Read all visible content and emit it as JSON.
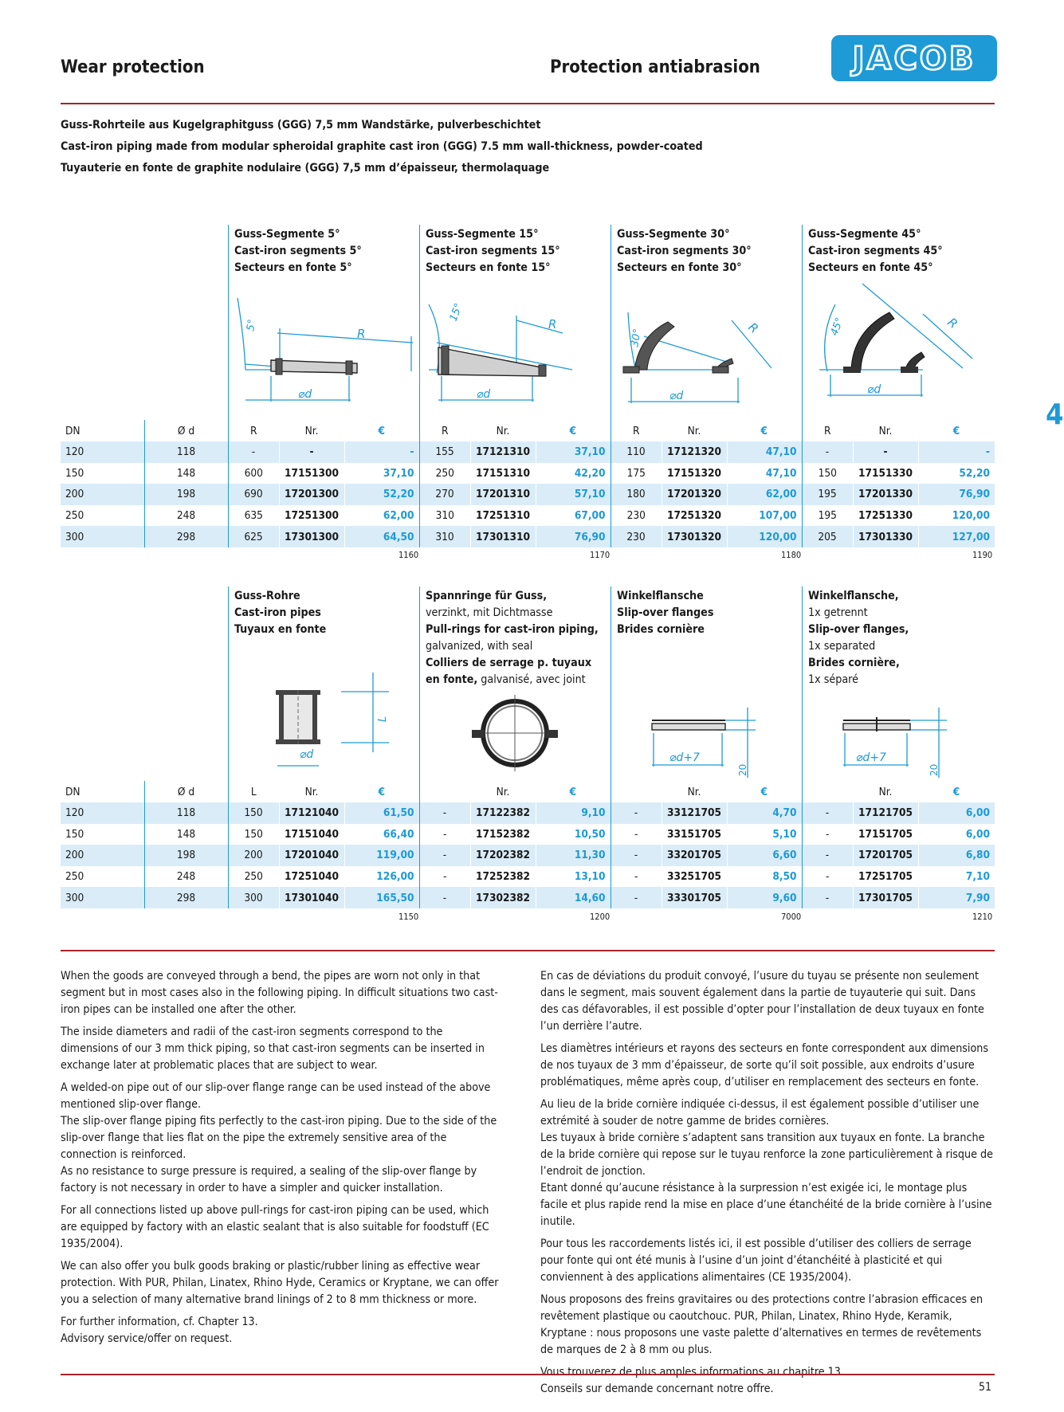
{
  "header": {
    "title_en": "Wear protection",
    "title_fr": "Protection antiabrasion",
    "logo_text": "JACOB"
  },
  "chapter_number": "4",
  "intro": [
    "Guss-Rohrteile aus Kugelgraphitguss (GGG) 7,5 mm Wandstärke, pulverbeschichtet",
    "Cast-iron piping made from modular spheroidal graphite cast iron (GGG) 7.5 mm wall-thickness, powder-coated",
    "Tuyauterie en fonte de graphite nodulaire (GGG) 7,5 mm d’épaisseur, thermolaquage"
  ],
  "table1": {
    "products": [
      {
        "de": "Guss-Segmente 5°",
        "en": "Cast-iron segments 5°",
        "fr": "Secteurs en fonte 5°",
        "angle": "5°",
        "code": "1160"
      },
      {
        "de": "Guss-Segmente 15°",
        "en": "Cast-iron segments 15°",
        "fr": "Secteurs en fonte 15°",
        "angle": "15°",
        "code": "1170"
      },
      {
        "de": "Guss-Segmente 30°",
        "en": "Cast-iron segments 30°",
        "fr": "Secteurs en fonte 30°",
        "angle": "30°",
        "code": "1180"
      },
      {
        "de": "Guss-Segmente 45°",
        "en": "Cast-iron segments 45°",
        "fr": "Secteurs en fonte 45°",
        "angle": "45°",
        "code": "1190"
      }
    ],
    "diagram_labels": {
      "radius": "R",
      "diameter": "⌀d"
    },
    "headers": {
      "dn": "DN",
      "od": "Ø d",
      "r": "R",
      "nr": "Nr.",
      "eur": "€"
    },
    "rows": [
      {
        "dn": "120",
        "od": "118",
        "c": [
          [
            "-",
            "-",
            "-"
          ],
          [
            "155",
            "17121310",
            "37,10"
          ],
          [
            "110",
            "17121320",
            "47,10"
          ],
          [
            "-",
            "-",
            "-"
          ]
        ]
      },
      {
        "dn": "150",
        "od": "148",
        "c": [
          [
            "600",
            "17151300",
            "37,10"
          ],
          [
            "250",
            "17151310",
            "42,20"
          ],
          [
            "175",
            "17151320",
            "47,10"
          ],
          [
            "150",
            "17151330",
            "52,20"
          ]
        ]
      },
      {
        "dn": "200",
        "od": "198",
        "c": [
          [
            "690",
            "17201300",
            "52,20"
          ],
          [
            "270",
            "17201310",
            "57,10"
          ],
          [
            "180",
            "17201320",
            "62,00"
          ],
          [
            "195",
            "17201330",
            "76,90"
          ]
        ]
      },
      {
        "dn": "250",
        "od": "248",
        "c": [
          [
            "635",
            "17251300",
            "62,00"
          ],
          [
            "310",
            "17251310",
            "67,00"
          ],
          [
            "230",
            "17251320",
            "107,00"
          ],
          [
            "195",
            "17251330",
            "120,00"
          ]
        ]
      },
      {
        "dn": "300",
        "od": "298",
        "c": [
          [
            "625",
            "17301300",
            "64,50"
          ],
          [
            "310",
            "17301310",
            "76,90"
          ],
          [
            "230",
            "17301320",
            "120,00"
          ],
          [
            "205",
            "17301330",
            "127,00"
          ]
        ]
      }
    ]
  },
  "table2": {
    "products": [
      {
        "lines": [
          {
            "t": "Guss-Rohre",
            "b": true
          },
          {
            "t": "Cast-iron pipes",
            "b": true
          },
          {
            "t": "Tuyaux en fonte",
            "b": true
          }
        ],
        "code": "1150"
      },
      {
        "lines": [
          {
            "t": "Spannringe für Guss,",
            "b": true
          },
          {
            "t": "verzinkt, mit Dichtmasse",
            "b": false
          },
          {
            "t": "Pull-rings for cast-iron piping,",
            "b": true
          },
          {
            "t": "galvanized, with seal",
            "b": false
          },
          {
            "t": "Colliers de serrage p. tuyaux",
            "b": true
          },
          {
            "t": "en fonte,",
            "b": true,
            "rest": " galvanisé, avec joint"
          }
        ],
        "code": "1200"
      },
      {
        "lines": [
          {
            "t": "Winkelflansche",
            "b": true
          },
          {
            "t": "Slip-over flanges",
            "b": true
          },
          {
            "t": "Brides cornière",
            "b": true
          }
        ],
        "code": "7000"
      },
      {
        "lines": [
          {
            "t": "Winkelflansche,",
            "b": true
          },
          {
            "t": "1x getrennt",
            "b": false
          },
          {
            "t": "Slip-over flanges,",
            "b": true
          },
          {
            "t": "1x separated",
            "b": false
          },
          {
            "t": "Brides cornière,",
            "b": true
          },
          {
            "t": "1x séparé",
            "b": false
          }
        ],
        "code": "1210"
      }
    ],
    "diagram_labels": {
      "length": "L",
      "diameter": "⌀d",
      "flange_diameter": "⌀d+7",
      "height": "20"
    },
    "headers": {
      "dn": "DN",
      "od": "Ø d",
      "l": "L",
      "nr": "Nr.",
      "eur": "€"
    },
    "rows": [
      {
        "dn": "120",
        "od": "118",
        "c": [
          [
            "150",
            "17121040",
            "61,50"
          ],
          [
            "-",
            "17122382",
            "9,10"
          ],
          [
            "-",
            "33121705",
            "4,70"
          ],
          [
            "-",
            "17121705",
            "6,00"
          ]
        ]
      },
      {
        "dn": "150",
        "od": "148",
        "c": [
          [
            "150",
            "17151040",
            "66,40"
          ],
          [
            "-",
            "17152382",
            "10,50"
          ],
          [
            "-",
            "33151705",
            "5,10"
          ],
          [
            "-",
            "17151705",
            "6,00"
          ]
        ]
      },
      {
        "dn": "200",
        "od": "198",
        "c": [
          [
            "200",
            "17201040",
            "119,00"
          ],
          [
            "-",
            "17202382",
            "11,30"
          ],
          [
            "-",
            "33201705",
            "6,60"
          ],
          [
            "-",
            "17201705",
            "6,80"
          ]
        ]
      },
      {
        "dn": "250",
        "od": "248",
        "c": [
          [
            "250",
            "17251040",
            "126,00"
          ],
          [
            "-",
            "17252382",
            "13,10"
          ],
          [
            "-",
            "33251705",
            "8,50"
          ],
          [
            "-",
            "17251705",
            "7,10"
          ]
        ]
      },
      {
        "dn": "300",
        "od": "298",
        "c": [
          [
            "300",
            "17301040",
            "165,50"
          ],
          [
            "-",
            "17302382",
            "14,60"
          ],
          [
            "-",
            "33301705",
            "9,60"
          ],
          [
            "-",
            "17301705",
            "7,90"
          ]
        ]
      }
    ]
  },
  "text_en": [
    "When the goods are conveyed through a bend, the pipes are worn not only in that segment but in most cases also in the following piping. In difficult situations two cast-iron pipes can be installed one after the other.",
    "The inside diameters and radii of the cast-iron segments correspond to the dimensions of our 3 mm thick piping, so that cast-iron segments can be inserted in exchange later at problematic places that are subject to wear.",
    "A welded-on pipe out of our slip-over flange range can be used instead of the above mentioned slip-over flange.\nThe slip-over flange piping fits perfectly to the cast-iron piping. Due to the side of the slip-over flange that lies flat on the pipe the extremely sensitive area of the connection is reinforced.\nAs no resistance to surge pressure is required, a sealing of the slip-over flange by factory is not necessary in order to have a simpler and quicker installation.",
    "For all connections listed up above pull-rings for cast-iron piping can be used, which are equipped by factory with an elastic sealant that is also suitable for foodstuff (EC 1935/2004).",
    "We can also offer you bulk goods braking or plastic/rubber lining as effective wear protection. With PUR, Philan, Linatex, Rhino Hyde, Ceramics or Kryptane, we can offer you a selection of many alternative brand linings of 2 to 8 mm thickness or more.",
    "For further information, cf. Chapter 13.\nAdvisory service/offer on request."
  ],
  "text_fr": [
    "En cas de déviations du produit convoyé, l’usure du tuyau se présente non seulement dans le segment, mais souvent également dans la partie de tuyauterie qui suit. Dans des cas défavorables, il est possible d’opter pour l’installation de deux tuyaux en fonte l’un derrière l’autre.",
    "Les diamètres intérieurs et rayons des secteurs en fonte correspondent aux dimensions de nos tuyaux de 3 mm d’épaisseur, de sorte qu’il soit possible, aux endroits d’usure problématiques, même après coup, d’utiliser en remplacement des secteurs en fonte.",
    "Au lieu de la bride cornière indiquée ci-dessus, il est également possible d’utiliser une extrémité à souder de notre gamme de brides cornières.\nLes tuyaux à bride cornière s’adaptent sans transition aux tuyaux en fonte. La branche de la bride cornière qui repose sur le tuyau renforce la zone particulièrement à risque de l’endroit de jonction.\nEtant donné qu’aucune résistance à la surpression n’est exigée ici, le montage plus facile et plus rapide rend la mise en place d’une étanchéité de la bride cornière à l’usine inutile.",
    "Pour tous les raccordements listés ici, il est possible d’utiliser des colliers de serrage pour fonte qui ont été munis à l’usine d’un joint d’étanchéité à plasticité et qui conviennent à des applications alimentaires (CE 1935/2004).",
    "Nous proposons des freins gravitaires ou des protections contre l’abrasion efficaces en revêtement plastique ou caoutchouc. PUR, Philan, Linatex, Rhino Hyde, Keramik, Kryptane : nous proposons une vaste palette d’alternatives en termes de revêtements de marques de 2 à 8 mm ou plus.",
    "Vous trouverez de plus amples informations au chapitre 13.\nConseils sur demande concernant notre offre."
  ],
  "page_number": "51",
  "colors": {
    "accent": "#1e9ad6",
    "rule": "#a3262b",
    "stripe": "#d9ecf7"
  }
}
